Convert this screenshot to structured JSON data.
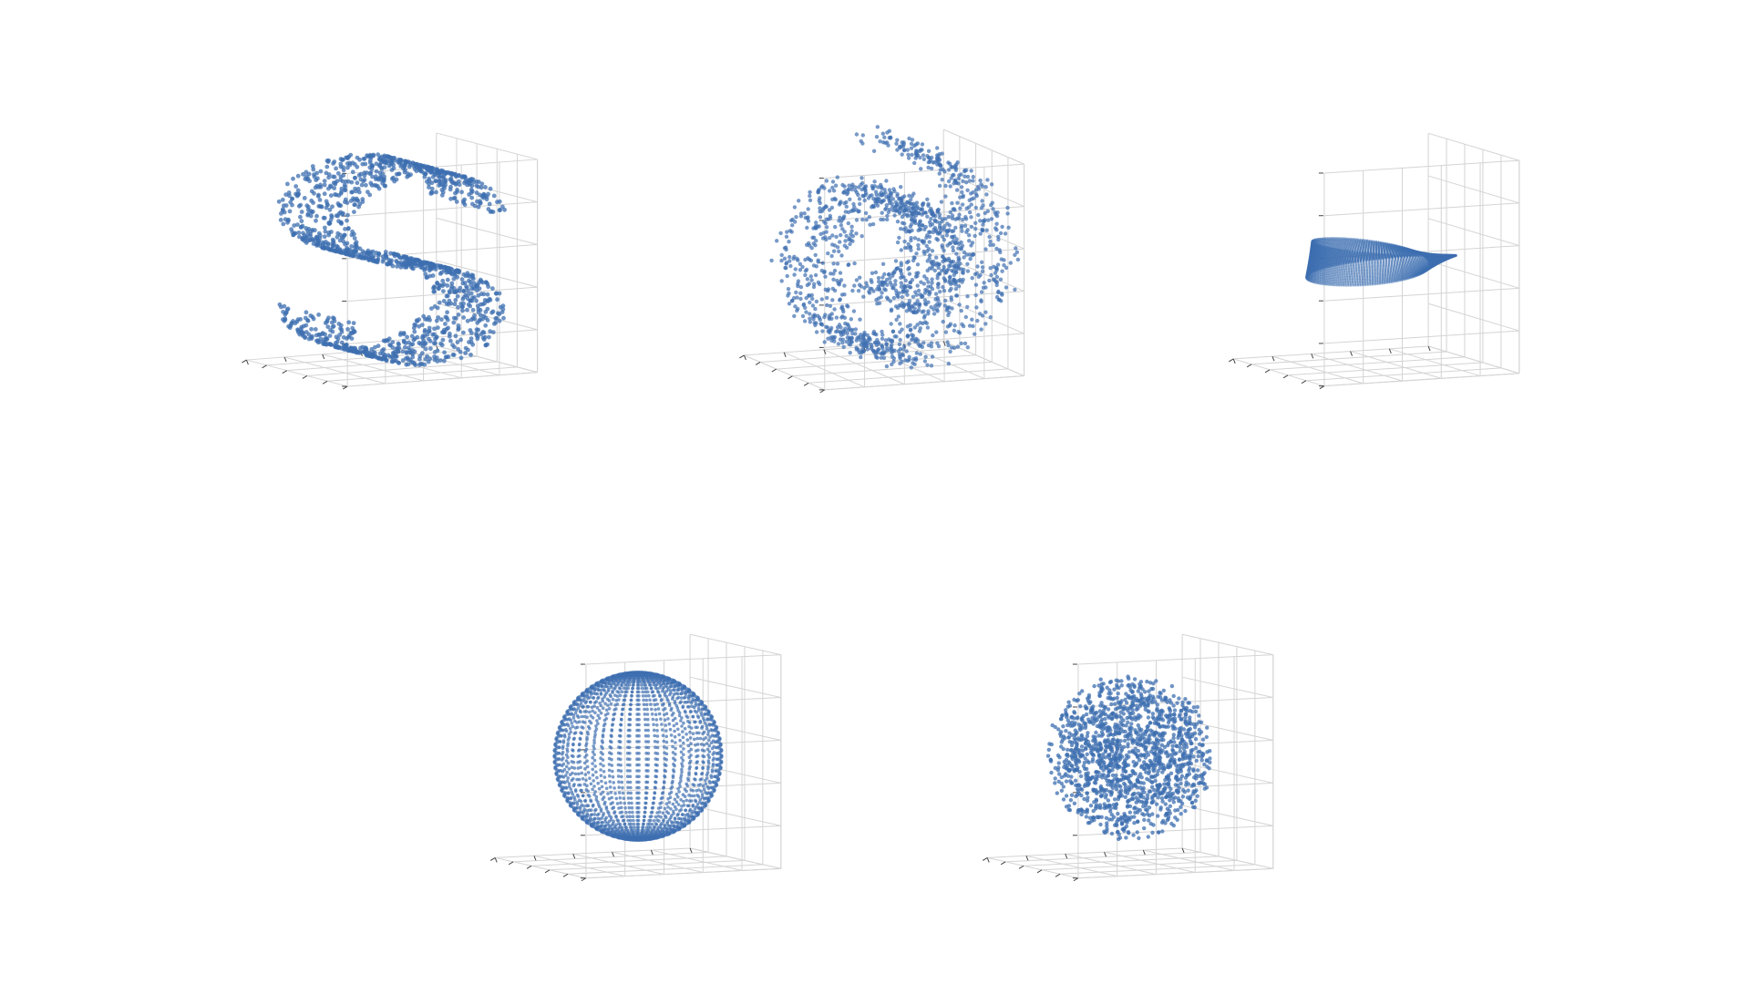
{
  "figure": {
    "point_color": "#3e6fb0",
    "grid_color": "#d4d4d4",
    "tick_color": "#444444",
    "background": "#ffffff"
  },
  "chart_data": [
    {
      "type": "scatter",
      "subtype": "3d-scatter",
      "shape": "s-curve",
      "title": "",
      "xlabel": "",
      "ylabel": "",
      "zlabel": "",
      "tick_labels_visible": false,
      "grid": true,
      "n_points": 1500,
      "x": [
        -1,
        1
      ],
      "y": [
        0,
        2
      ],
      "z": [
        -2,
        2
      ],
      "marker_color": "#3e6fb0"
    },
    {
      "type": "scatter",
      "subtype": "3d-scatter",
      "shape": "swiss-roll",
      "title": "",
      "xlabel": "",
      "ylabel": "",
      "zlabel": "",
      "tick_labels_visible": false,
      "grid": true,
      "n_points": 1500,
      "x": [
        -10,
        13
      ],
      "y": [
        0,
        21
      ],
      "z": [
        -11,
        14
      ],
      "marker_color": "#3e6fb0"
    },
    {
      "type": "scatter",
      "subtype": "3d-scatter",
      "shape": "mobius-strip",
      "title": "",
      "xlabel": "",
      "ylabel": "",
      "zlabel": "",
      "tick_labels_visible": false,
      "grid": true,
      "n_points": 4000,
      "x": [
        -1.5,
        1.5
      ],
      "y": [
        -1.5,
        1.5
      ],
      "z": [
        -0.5,
        0.5
      ],
      "marker_color": "#3e6fb0"
    },
    {
      "type": "scatter",
      "subtype": "3d-scatter",
      "shape": "sphere-surface",
      "title": "",
      "xlabel": "",
      "ylabel": "",
      "zlabel": "",
      "tick_labels_visible": false,
      "grid": true,
      "n_points": 2500,
      "x": [
        -1,
        1
      ],
      "y": [
        -1,
        1
      ],
      "z": [
        -1,
        1
      ],
      "marker_color": "#3e6fb0"
    },
    {
      "type": "scatter",
      "subtype": "3d-scatter",
      "shape": "solid-ball",
      "title": "",
      "xlabel": "",
      "ylabel": "",
      "zlabel": "",
      "tick_labels_visible": false,
      "grid": true,
      "n_points": 1500,
      "x": [
        -1,
        1
      ],
      "y": [
        -1,
        1
      ],
      "z": [
        -1,
        1
      ],
      "marker_color": "#3e6fb0"
    }
  ]
}
